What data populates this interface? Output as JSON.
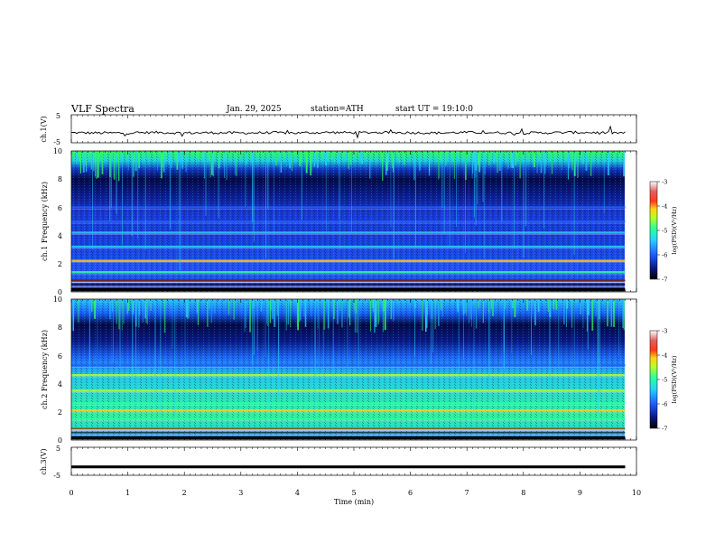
{
  "header": {
    "title": "VLF Spectra",
    "date": "Jan. 29, 2025",
    "station": "station=ATH",
    "start": "start UT = 19:10:0"
  },
  "colorbar": {
    "ticks": [
      "-3",
      "-4",
      "-5",
      "-6",
      "-7"
    ],
    "label": "log(PSD)(V²/Hz)",
    "colors": [
      "#000000",
      "#0a1a8a",
      "#1f5cff",
      "#29d0ff",
      "#2fff9a",
      "#b6ff2a",
      "#ffd21a",
      "#ff3a1a",
      "#e06060",
      "#ffffff"
    ]
  },
  "chart_data": [
    {
      "type": "line",
      "name": "ch1-voltage",
      "ylabel": "ch.1(V)",
      "ylim": [
        -5,
        5
      ],
      "yticks": [
        "5",
        "-5"
      ],
      "x": [
        0,
        0.5,
        1,
        1.5,
        2,
        2.5,
        3,
        3.5,
        4,
        4.5,
        5,
        5.5,
        6,
        6.5,
        7,
        7.5,
        8,
        8.5,
        9,
        9.5,
        9.8
      ],
      "y": [
        -1.4,
        -1.5,
        -1.5,
        -1.3,
        -1.5,
        -1.4,
        -1.5,
        -1.4,
        -1.5,
        -1.3,
        -1.4,
        -1.3,
        -1.4,
        -1.5,
        -1.3,
        -1.4,
        -1.5,
        -1.4,
        -1.3,
        -1.4,
        -1.5
      ]
    },
    {
      "type": "heatmap",
      "name": "ch1-spectrogram",
      "ylabel": "ch.1 Frequency (kHz)",
      "ylim": [
        0,
        10
      ],
      "yticks": [
        "10",
        "8",
        "6",
        "4",
        "2",
        "0"
      ],
      "xlim": [
        0,
        9.8
      ],
      "bands_khz": [
        {
          "f": 0.8,
          "level": -3.8
        },
        {
          "f": 1.4,
          "level": -4.6
        },
        {
          "f": 2.2,
          "level": -4.1
        },
        {
          "f": 3.2,
          "level": -5.0
        },
        {
          "f": 4.2,
          "level": -5.1
        },
        {
          "f": 5.0,
          "level": -5.3
        },
        {
          "f": 6.0,
          "level": -5.4
        }
      ],
      "upper_noise_start_khz": 8.2
    },
    {
      "type": "heatmap",
      "name": "ch2-spectrogram",
      "ylabel": "ch.2 Frequency (kHz)",
      "ylim": [
        0,
        10
      ],
      "yticks": [
        "10",
        "8",
        "6",
        "4",
        "2",
        "0"
      ],
      "xlim": [
        0,
        9.8
      ],
      "bands_khz": [
        {
          "f": 0.8,
          "level": -4.0
        },
        {
          "f": 1.5,
          "level": -4.6
        },
        {
          "f": 2.1,
          "level": -3.9
        },
        {
          "f": 2.6,
          "level": -4.5
        },
        {
          "f": 3.5,
          "level": -4.3
        },
        {
          "f": 4.6,
          "level": -4.4
        },
        {
          "f": 5.3,
          "level": -5.2
        }
      ],
      "upper_noise_start_khz": 8.0
    },
    {
      "type": "line",
      "name": "ch3-voltage",
      "ylabel": "ch.3(V)",
      "ylim": [
        -5,
        5
      ],
      "yticks": [
        "5",
        "-5"
      ],
      "x": [
        0,
        9.8
      ],
      "y": [
        -2.0,
        -2.0
      ]
    },
    {
      "type": "axis",
      "name": "time-axis",
      "xlabel": "Time (min)",
      "xlim": [
        0,
        10
      ],
      "xticks": [
        "0",
        "1",
        "2",
        "3",
        "4",
        "5",
        "6",
        "7",
        "8",
        "9",
        "10"
      ]
    }
  ]
}
